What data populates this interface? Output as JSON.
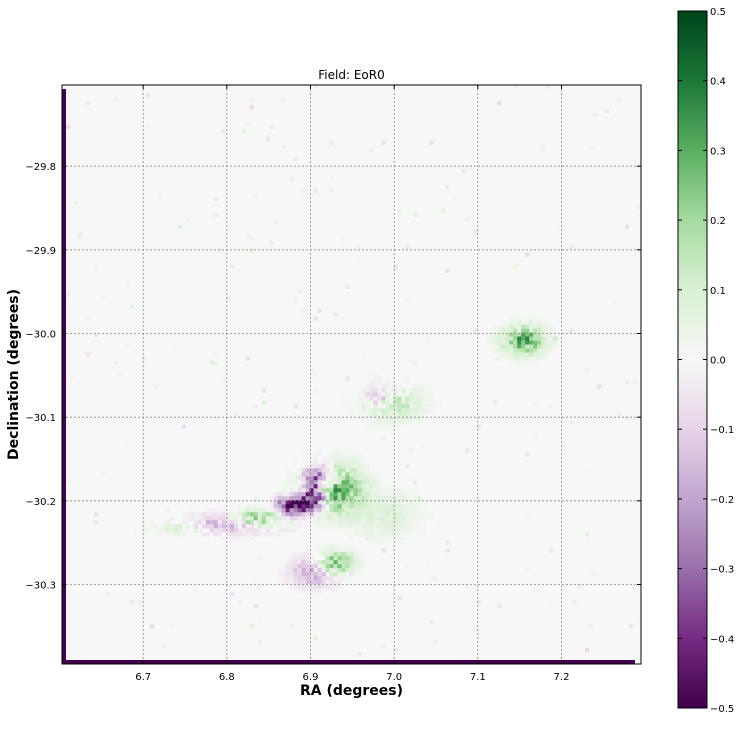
{
  "chart_data": {
    "type": "heatmap",
    "title": "Field: EoR0",
    "xlabel": "RA (degrees)",
    "ylabel": "Declination (degrees)",
    "xlim": [
      6.603,
      7.295
    ],
    "ylim": [
      -30.395,
      -29.703
    ],
    "x_reversed": false,
    "x_ticks": [
      6.7,
      6.8,
      6.9,
      7.0,
      7.1,
      7.2
    ],
    "x_tick_labels": [
      "6.7",
      "6.8",
      "6.9",
      "7.0",
      "7.1",
      "7.2"
    ],
    "y_ticks": [
      -29.8,
      -29.9,
      -30.0,
      -30.1,
      -30.2,
      -30.3
    ],
    "y_tick_labels": [
      "−29.8",
      "−29.9",
      "−30.0",
      "−30.1",
      "−30.2",
      "−30.3"
    ],
    "grid": true,
    "colormap": "PRGn",
    "colorbar": {
      "vmin": -0.5,
      "vmax": 0.5,
      "ticks": [
        0.5,
        0.4,
        0.3,
        0.2,
        0.1,
        0.0,
        -0.1,
        -0.2,
        -0.3,
        -0.4,
        -0.5
      ],
      "tick_labels": [
        "0.5",
        "0.4",
        "0.3",
        "0.2",
        "0.1",
        "0.0",
        "−0.1",
        "−0.2",
        "−0.3",
        "−0.4",
        "−0.5"
      ]
    },
    "features": [
      {
        "kind": "blob",
        "ra": 7.155,
        "dec": -30.008,
        "peak": 0.28,
        "sigma_ra": 0.018,
        "sigma_dec": 0.012
      },
      {
        "kind": "blob",
        "ra": 6.995,
        "dec": -30.082,
        "peak": 0.18,
        "sigma_ra": 0.025,
        "sigma_dec": 0.014
      },
      {
        "kind": "blob",
        "ra": 6.985,
        "dec": -30.075,
        "peak": -0.18,
        "sigma_ra": 0.018,
        "sigma_dec": 0.012
      },
      {
        "kind": "blob",
        "ra": 6.925,
        "dec": -30.185,
        "peak": 0.3,
        "sigma_ra": 0.025,
        "sigma_dec": 0.02
      },
      {
        "kind": "blob",
        "ra": 6.91,
        "dec": -30.17,
        "peak": -0.25,
        "sigma_ra": 0.015,
        "sigma_dec": 0.012
      },
      {
        "kind": "blob",
        "ra": 6.885,
        "dec": -30.205,
        "peak": -0.6,
        "sigma_ra": 0.015,
        "sigma_dec": 0.008
      },
      {
        "kind": "blob",
        "ra": 6.905,
        "dec": -30.19,
        "peak": -0.5,
        "sigma_ra": 0.01,
        "sigma_dec": 0.012
      },
      {
        "kind": "blob",
        "ra": 6.8,
        "dec": -30.228,
        "peak": -0.2,
        "sigma_ra": 0.04,
        "sigma_dec": 0.008
      },
      {
        "kind": "blob",
        "ra": 6.835,
        "dec": -30.222,
        "peak": 0.3,
        "sigma_ra": 0.02,
        "sigma_dec": 0.007
      },
      {
        "kind": "blob",
        "ra": 6.755,
        "dec": -30.232,
        "peak": 0.12,
        "sigma_ra": 0.03,
        "sigma_dec": 0.007
      },
      {
        "kind": "blob",
        "ra": 6.985,
        "dec": -30.215,
        "peak": 0.08,
        "sigma_ra": 0.03,
        "sigma_dec": 0.02
      },
      {
        "kind": "blob",
        "ra": 6.93,
        "dec": -30.275,
        "peak": 0.28,
        "sigma_ra": 0.015,
        "sigma_dec": 0.01
      },
      {
        "kind": "blob",
        "ra": 6.905,
        "dec": -30.285,
        "peak": -0.18,
        "sigma_ra": 0.02,
        "sigma_dec": 0.012
      }
    ],
    "edges": [
      {
        "kind": "edge_strip",
        "side": "left",
        "value": -0.5
      },
      {
        "kind": "edge_strip",
        "side": "bottom",
        "value": -0.5
      }
    ]
  }
}
